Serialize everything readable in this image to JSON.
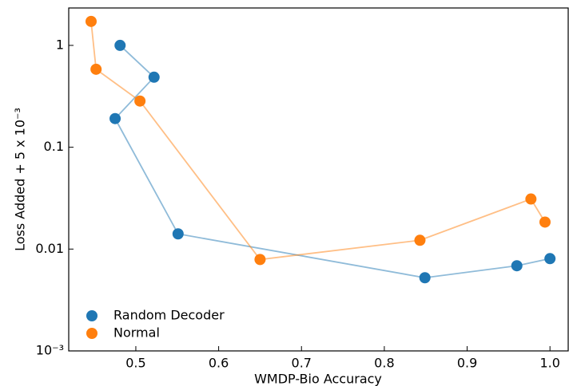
{
  "chart_data": {
    "type": "line",
    "x_label": "WMDP-Bio Accuracy",
    "y_label": "Loss Added + 5 x 10⁻³",
    "log_y": true,
    "legend": "lower left",
    "xlim": [
      0.419,
      1.022
    ],
    "xticks": [
      0.5,
      0.6,
      0.7,
      0.8,
      0.9,
      {
        "value": 1,
        "label": "1.0"
      }
    ],
    "ylim": [
      0.001,
      2.33
    ],
    "yticks": [
      {
        "value": 0.001,
        "label": "10⁻³"
      },
      0.01,
      0.1,
      1
    ],
    "series": [
      {
        "name": "Random Decoder",
        "color": "#1f77b4",
        "x": [
          0.481,
          0.522,
          0.475,
          0.551,
          0.849,
          0.96,
          1.0
        ],
        "values": [
          1.0,
          0.487,
          0.191,
          0.0141,
          0.00523,
          0.00686,
          0.00806
        ]
      },
      {
        "name": "Normal",
        "color": "#ff7f0e",
        "x": [
          0.446,
          0.452,
          0.505,
          0.65,
          0.843,
          0.977,
          0.994
        ],
        "values": [
          1.72,
          0.583,
          0.284,
          0.0079,
          0.0122,
          0.031,
          0.0184
        ]
      }
    ]
  }
}
